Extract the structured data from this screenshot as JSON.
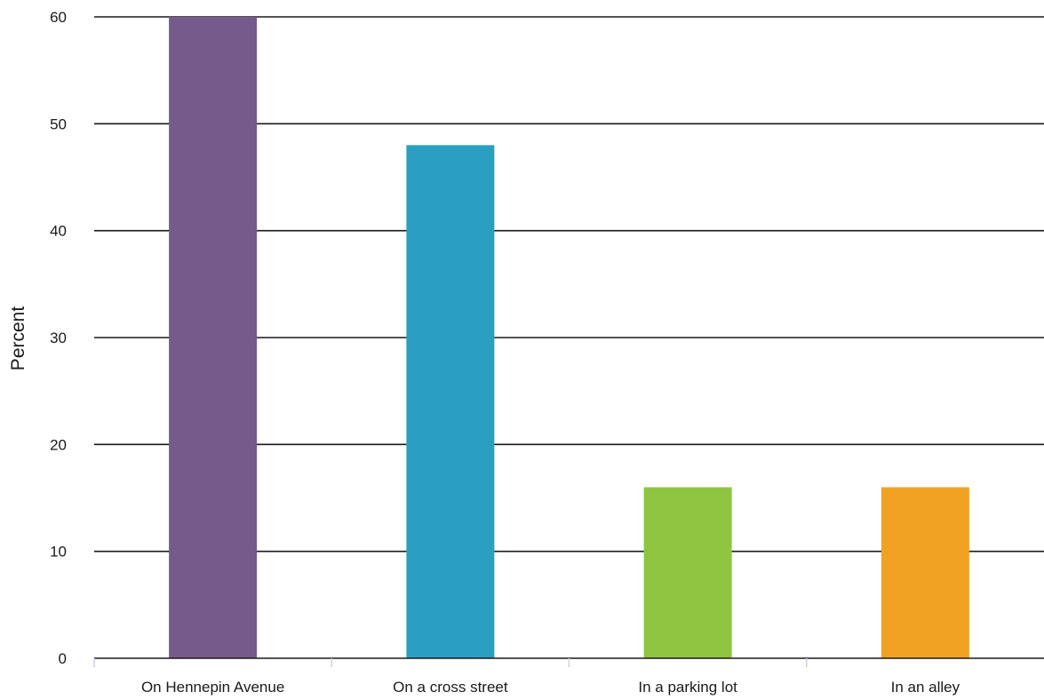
{
  "chart_data": {
    "type": "bar",
    "title": "",
    "xlabel": "",
    "ylabel": "Percent",
    "ylim": [
      0,
      60
    ],
    "yticks": [
      0,
      10,
      20,
      30,
      40,
      50,
      60
    ],
    "grid": true,
    "legend": "none",
    "categories": [
      "On Hennepin Avenue",
      "On a cross street",
      "In a parking lot",
      "In an alley"
    ],
    "values": [
      60,
      48,
      16,
      16
    ],
    "colors": [
      "#765a8b",
      "#2a9fc2",
      "#8fc541",
      "#f2a223"
    ]
  }
}
